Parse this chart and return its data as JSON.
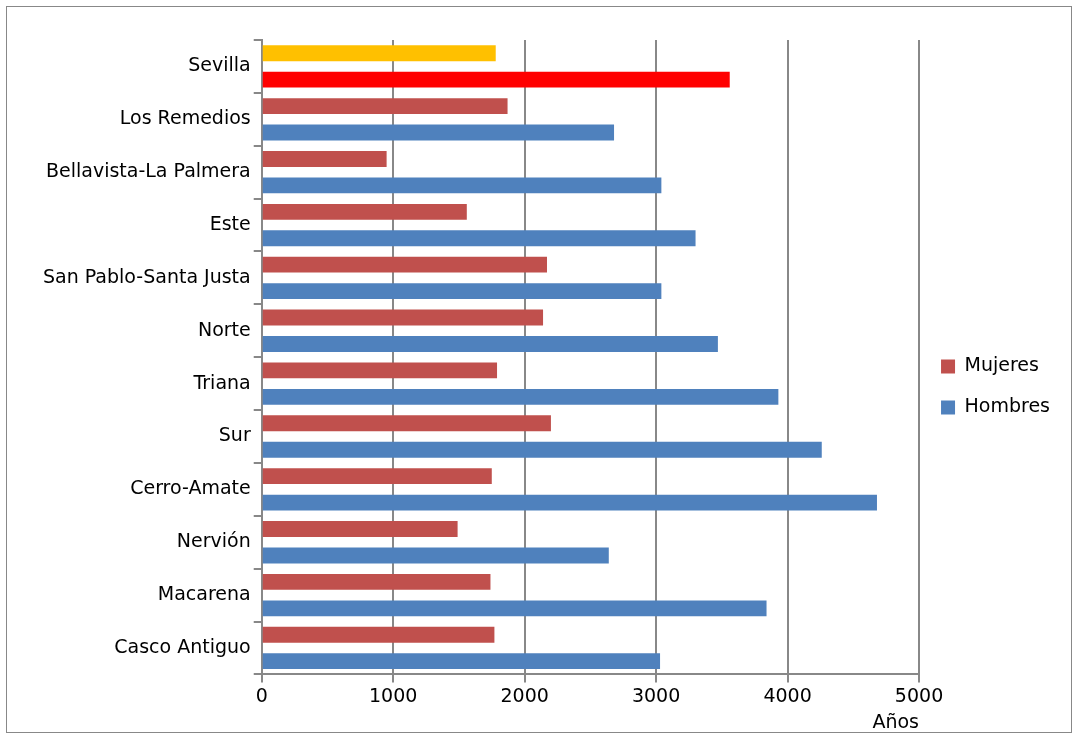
{
  "chart_data": {
    "type": "bar",
    "orientation": "horizontal",
    "xlabel": "Años",
    "categories": [
      "Sevilla",
      "Los Remedios",
      "Bellavista-La Palmera",
      "Este",
      "San Pablo-Santa Justa",
      "Norte",
      "Triana",
      "Sur",
      "Cerro-Amate",
      "Nervión",
      "Macarena",
      "Casco Antiguo"
    ],
    "series": [
      {
        "name": "Mujeres",
        "color": "#c0504d",
        "colors": [
          "#ffc000",
          "#c0504d",
          "#c0504d",
          "#c0504d",
          "#c0504d",
          "#c0504d",
          "#c0504d",
          "#c0504d",
          "#c0504d",
          "#c0504d",
          "#c0504d",
          "#c0504d"
        ],
        "values": [
          1780,
          1870,
          950,
          1560,
          2170,
          2140,
          1790,
          2200,
          1750,
          1490,
          1740,
          1770
        ]
      },
      {
        "name": "Hombres",
        "color": "#4f81bd",
        "colors": [
          "#ff0000",
          "#4f81bd",
          "#4f81bd",
          "#4f81bd",
          "#4f81bd",
          "#4f81bd",
          "#4f81bd",
          "#4f81bd",
          "#4f81bd",
          "#4f81bd",
          "#4f81bd",
          "#4f81bd"
        ],
        "values": [
          3560,
          2680,
          3040,
          3300,
          3040,
          3470,
          3930,
          4260,
          4680,
          2640,
          3840,
          3030
        ]
      }
    ],
    "xlim": [
      0,
      5000
    ],
    "xticks": [
      0,
      1000,
      2000,
      3000,
      4000,
      5000
    ],
    "grid": "x",
    "legend": "right"
  }
}
